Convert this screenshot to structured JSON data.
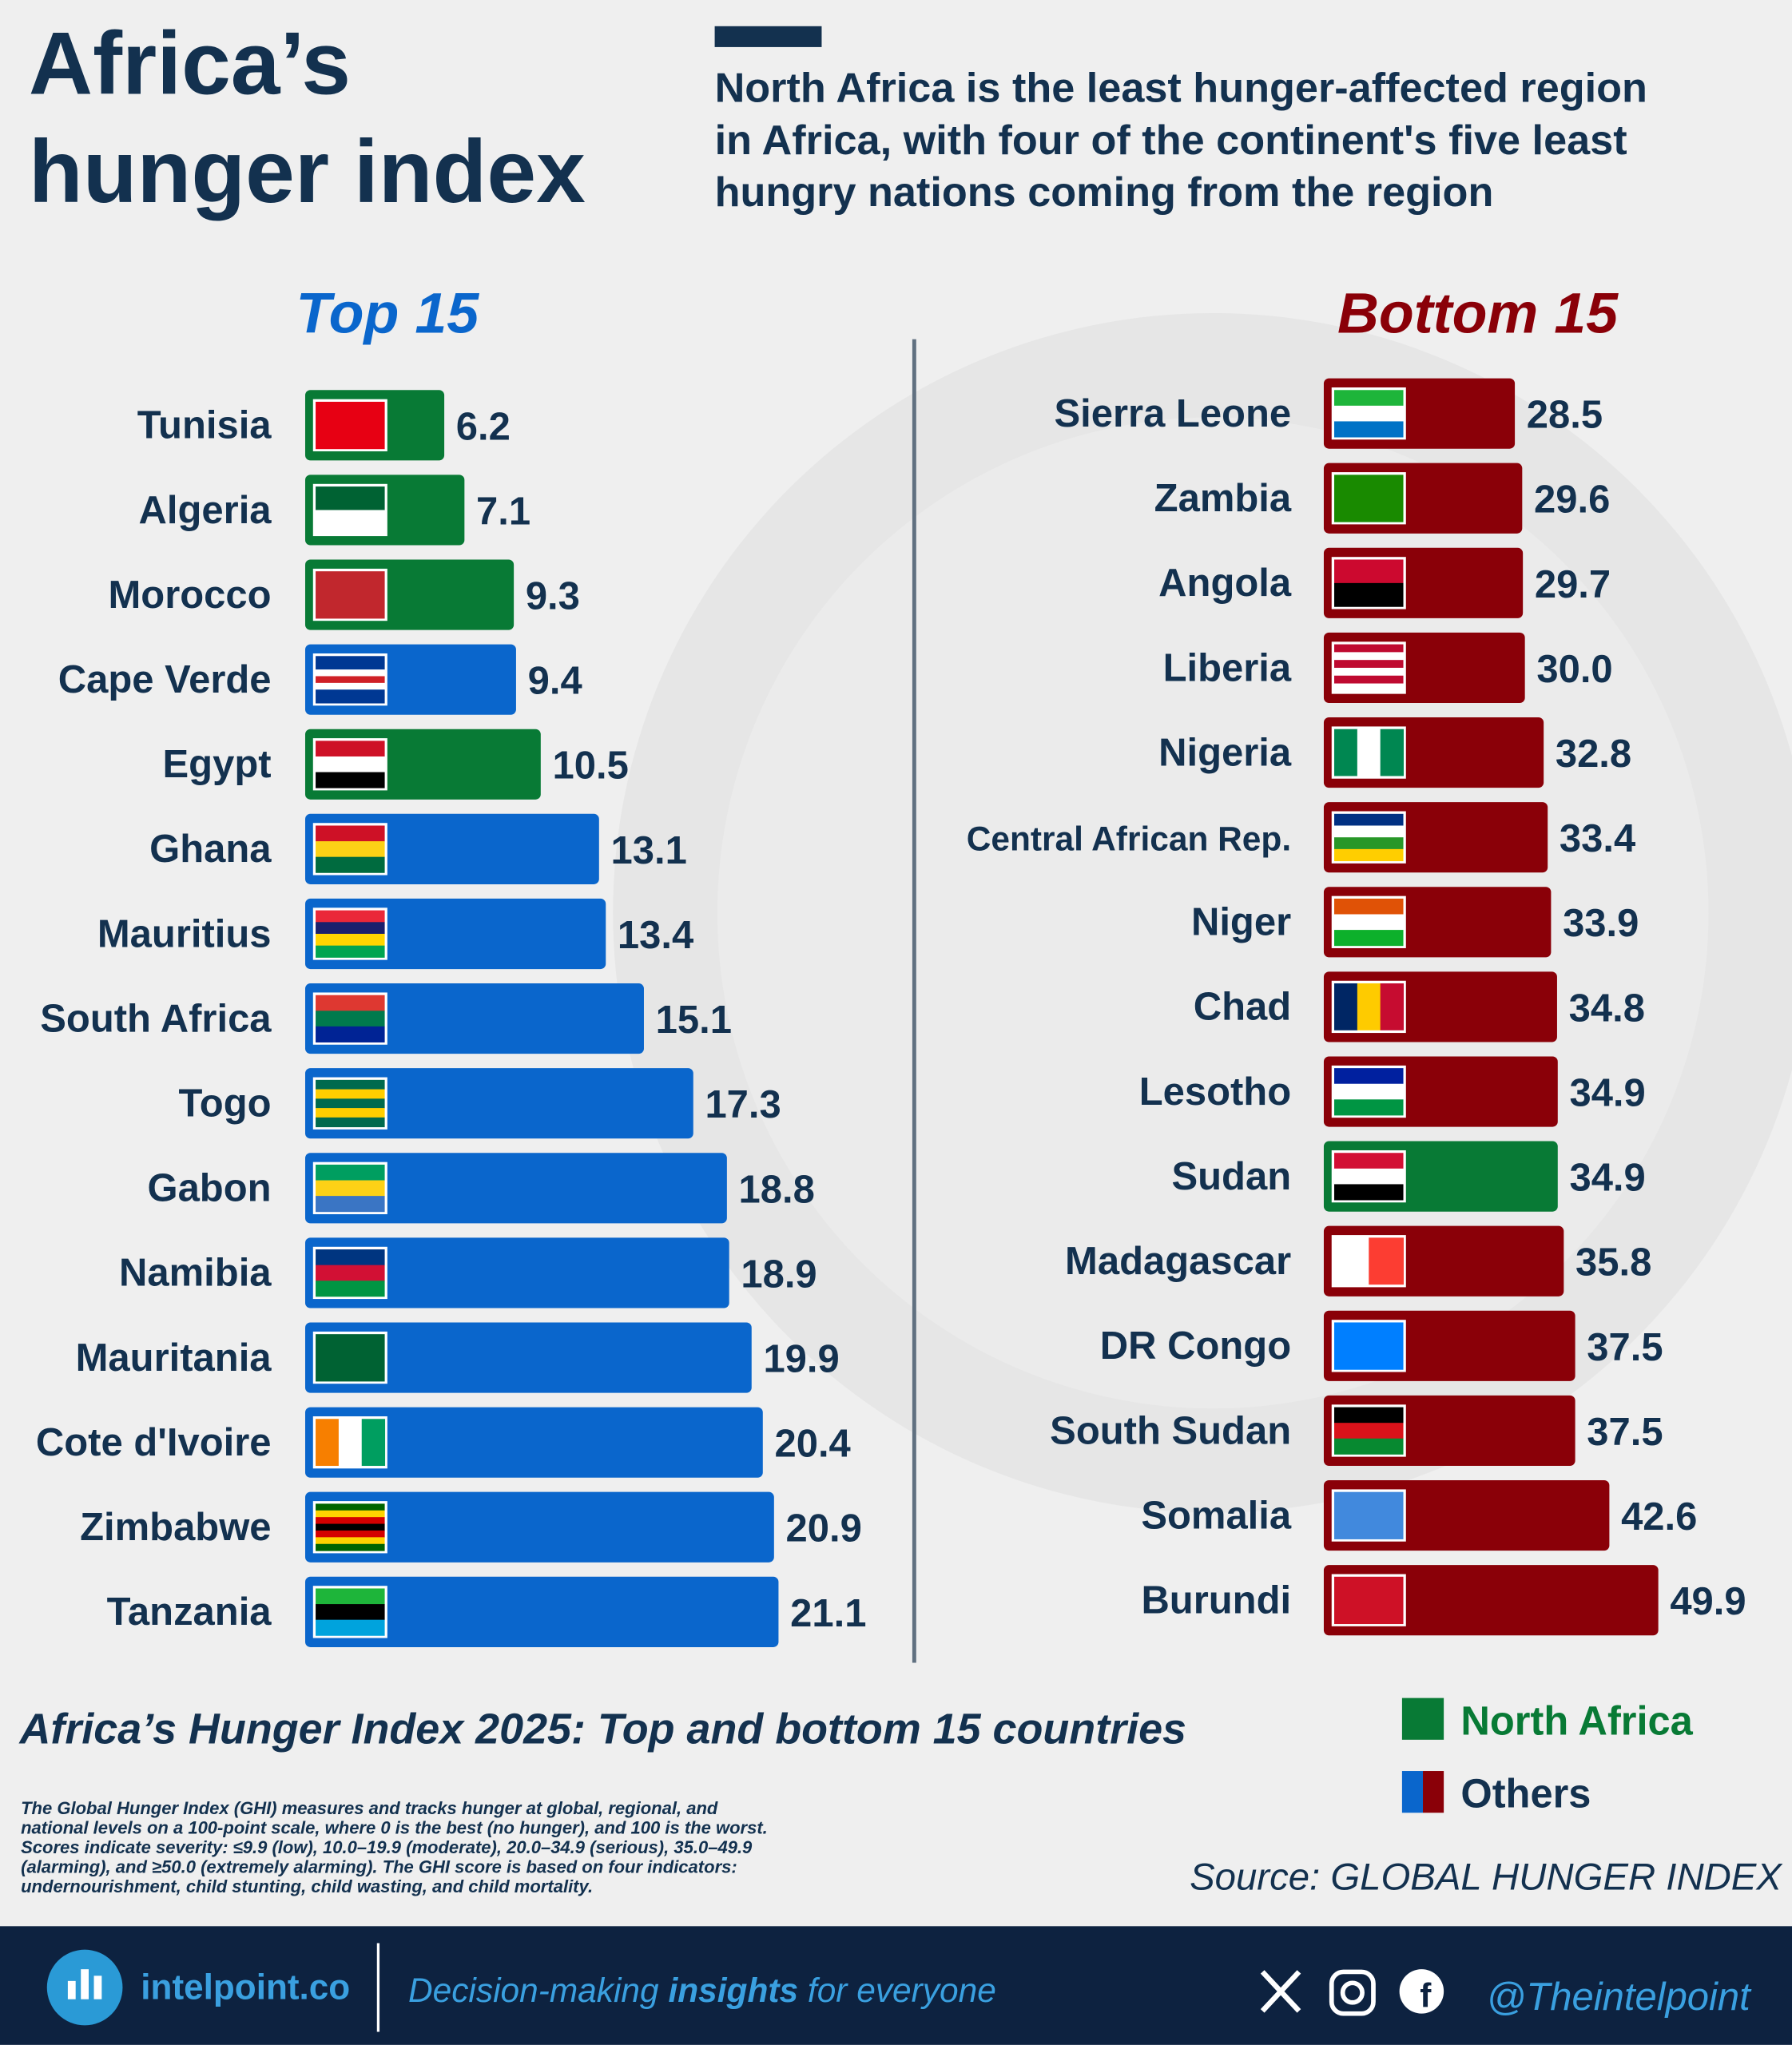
{
  "header": {
    "title_lines": [
      "Africa’s",
      "hunger index"
    ],
    "subtitle_lines": [
      "North Africa is the least hunger-affected region",
      "in Africa, with four of the continent's five least",
      "hungry nations coming from the region"
    ]
  },
  "chart_data": [
    {
      "type": "bar",
      "orientation": "horizontal",
      "title": "Top 15",
      "title_color": "#0a66cc",
      "categories": [
        "Tunisia",
        "Algeria",
        "Morocco",
        "Cape Verde",
        "Egypt",
        "Ghana",
        "Mauritius",
        "South Africa",
        "Togo",
        "Gabon",
        "Namibia",
        "Mauritania",
        "Cote d'Ivoire",
        "Zimbabwe",
        "Tanzania"
      ],
      "values": [
        6.2,
        7.1,
        9.3,
        9.4,
        10.5,
        13.1,
        13.4,
        15.1,
        17.3,
        18.8,
        18.9,
        19.9,
        20.4,
        20.9,
        21.1
      ],
      "colors": [
        "#087a35",
        "#087a35",
        "#087a35",
        "#0a66cc",
        "#087a35",
        "#0a66cc",
        "#0a66cc",
        "#0a66cc",
        "#0a66cc",
        "#0a66cc",
        "#0a66cc",
        "#0a66cc",
        "#0a66cc",
        "#0a66cc",
        "#0a66cc"
      ]
    },
    {
      "type": "bar",
      "orientation": "horizontal",
      "title": "Bottom 15",
      "title_color": "#8a0008",
      "categories": [
        "Sierra Leone",
        "Zambia",
        "Angola",
        "Liberia",
        "Nigeria",
        "Central African Rep.",
        "Niger",
        "Chad",
        "Lesotho",
        "Sudan",
        "Madagascar",
        "DR Congo",
        "South Sudan",
        "Somalia",
        "Burundi"
      ],
      "values": [
        28.5,
        29.6,
        29.7,
        30.0,
        32.8,
        33.4,
        33.9,
        34.8,
        34.9,
        34.9,
        35.8,
        37.5,
        37.5,
        42.6,
        49.9
      ],
      "value_labels": [
        "28.5",
        "29.6",
        "29.7",
        "30.0",
        "32.8",
        "33.4",
        "33.9",
        "34.8",
        "34.9",
        "34.9",
        "35.8",
        "37.5",
        "37.5",
        "42.6",
        "49.9"
      ],
      "colors": [
        "#8a0008",
        "#8a0008",
        "#8a0008",
        "#8a0008",
        "#8a0008",
        "#8a0008",
        "#8a0008",
        "#8a0008",
        "#8a0008",
        "#087a35",
        "#8a0008",
        "#8a0008",
        "#8a0008",
        "#8a0008",
        "#8a0008"
      ]
    }
  ],
  "caption": "Africa’s Hunger Index 2025: Top and bottom 15 countries",
  "legend": [
    {
      "name": "North Africa",
      "colors": [
        "#087a35"
      ]
    },
    {
      "name": "Others",
      "colors": [
        "#0a66cc",
        "#8a0008"
      ]
    }
  ],
  "note_lines": [
    "The Global Hunger Index (GHI) measures and tracks hunger at global, regional, and",
    "national levels on a 100-point scale, where 0 is the best (no hunger), and 100 is the worst.",
    "Scores indicate severity: ≤9.9 (low), 10.0–19.9 (moderate), 20.0–34.9 (serious), 35.0–49.9",
    "(alarming), and ≥50.0 (extremely alarming). The GHI score is based on four indicators:",
    "undernourishment, child stunting, child wasting, and child mortality."
  ],
  "source": "Source: GLOBAL HUNGER INDEX",
  "footer": {
    "site": "intelpoint.co",
    "tagline_parts": [
      "Decision-making ",
      "insights",
      " for everyone"
    ],
    "handle": "@Theintelpoint"
  }
}
